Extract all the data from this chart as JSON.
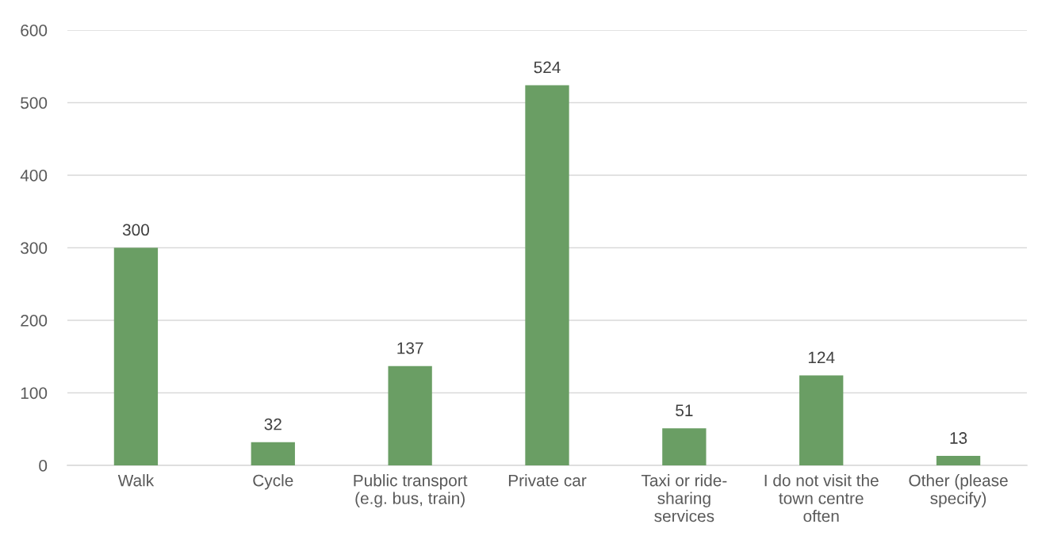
{
  "chart_data": {
    "type": "bar",
    "categories": [
      "Walk",
      "Cycle",
      "Public transport\n(e.g. bus, train)",
      "Private car",
      "Taxi or ride-\nsharing\nservices",
      "I do not visit the\ntown centre\noften",
      "Other (please\nspecify)"
    ],
    "values": [
      300,
      32,
      137,
      524,
      51,
      124,
      13
    ],
    "color": "#6a9e64",
    "ylim": [
      0,
      600
    ],
    "yticks": [
      0,
      100,
      200,
      300,
      400,
      500,
      600
    ],
    "grid": "y",
    "data_labels": true
  }
}
